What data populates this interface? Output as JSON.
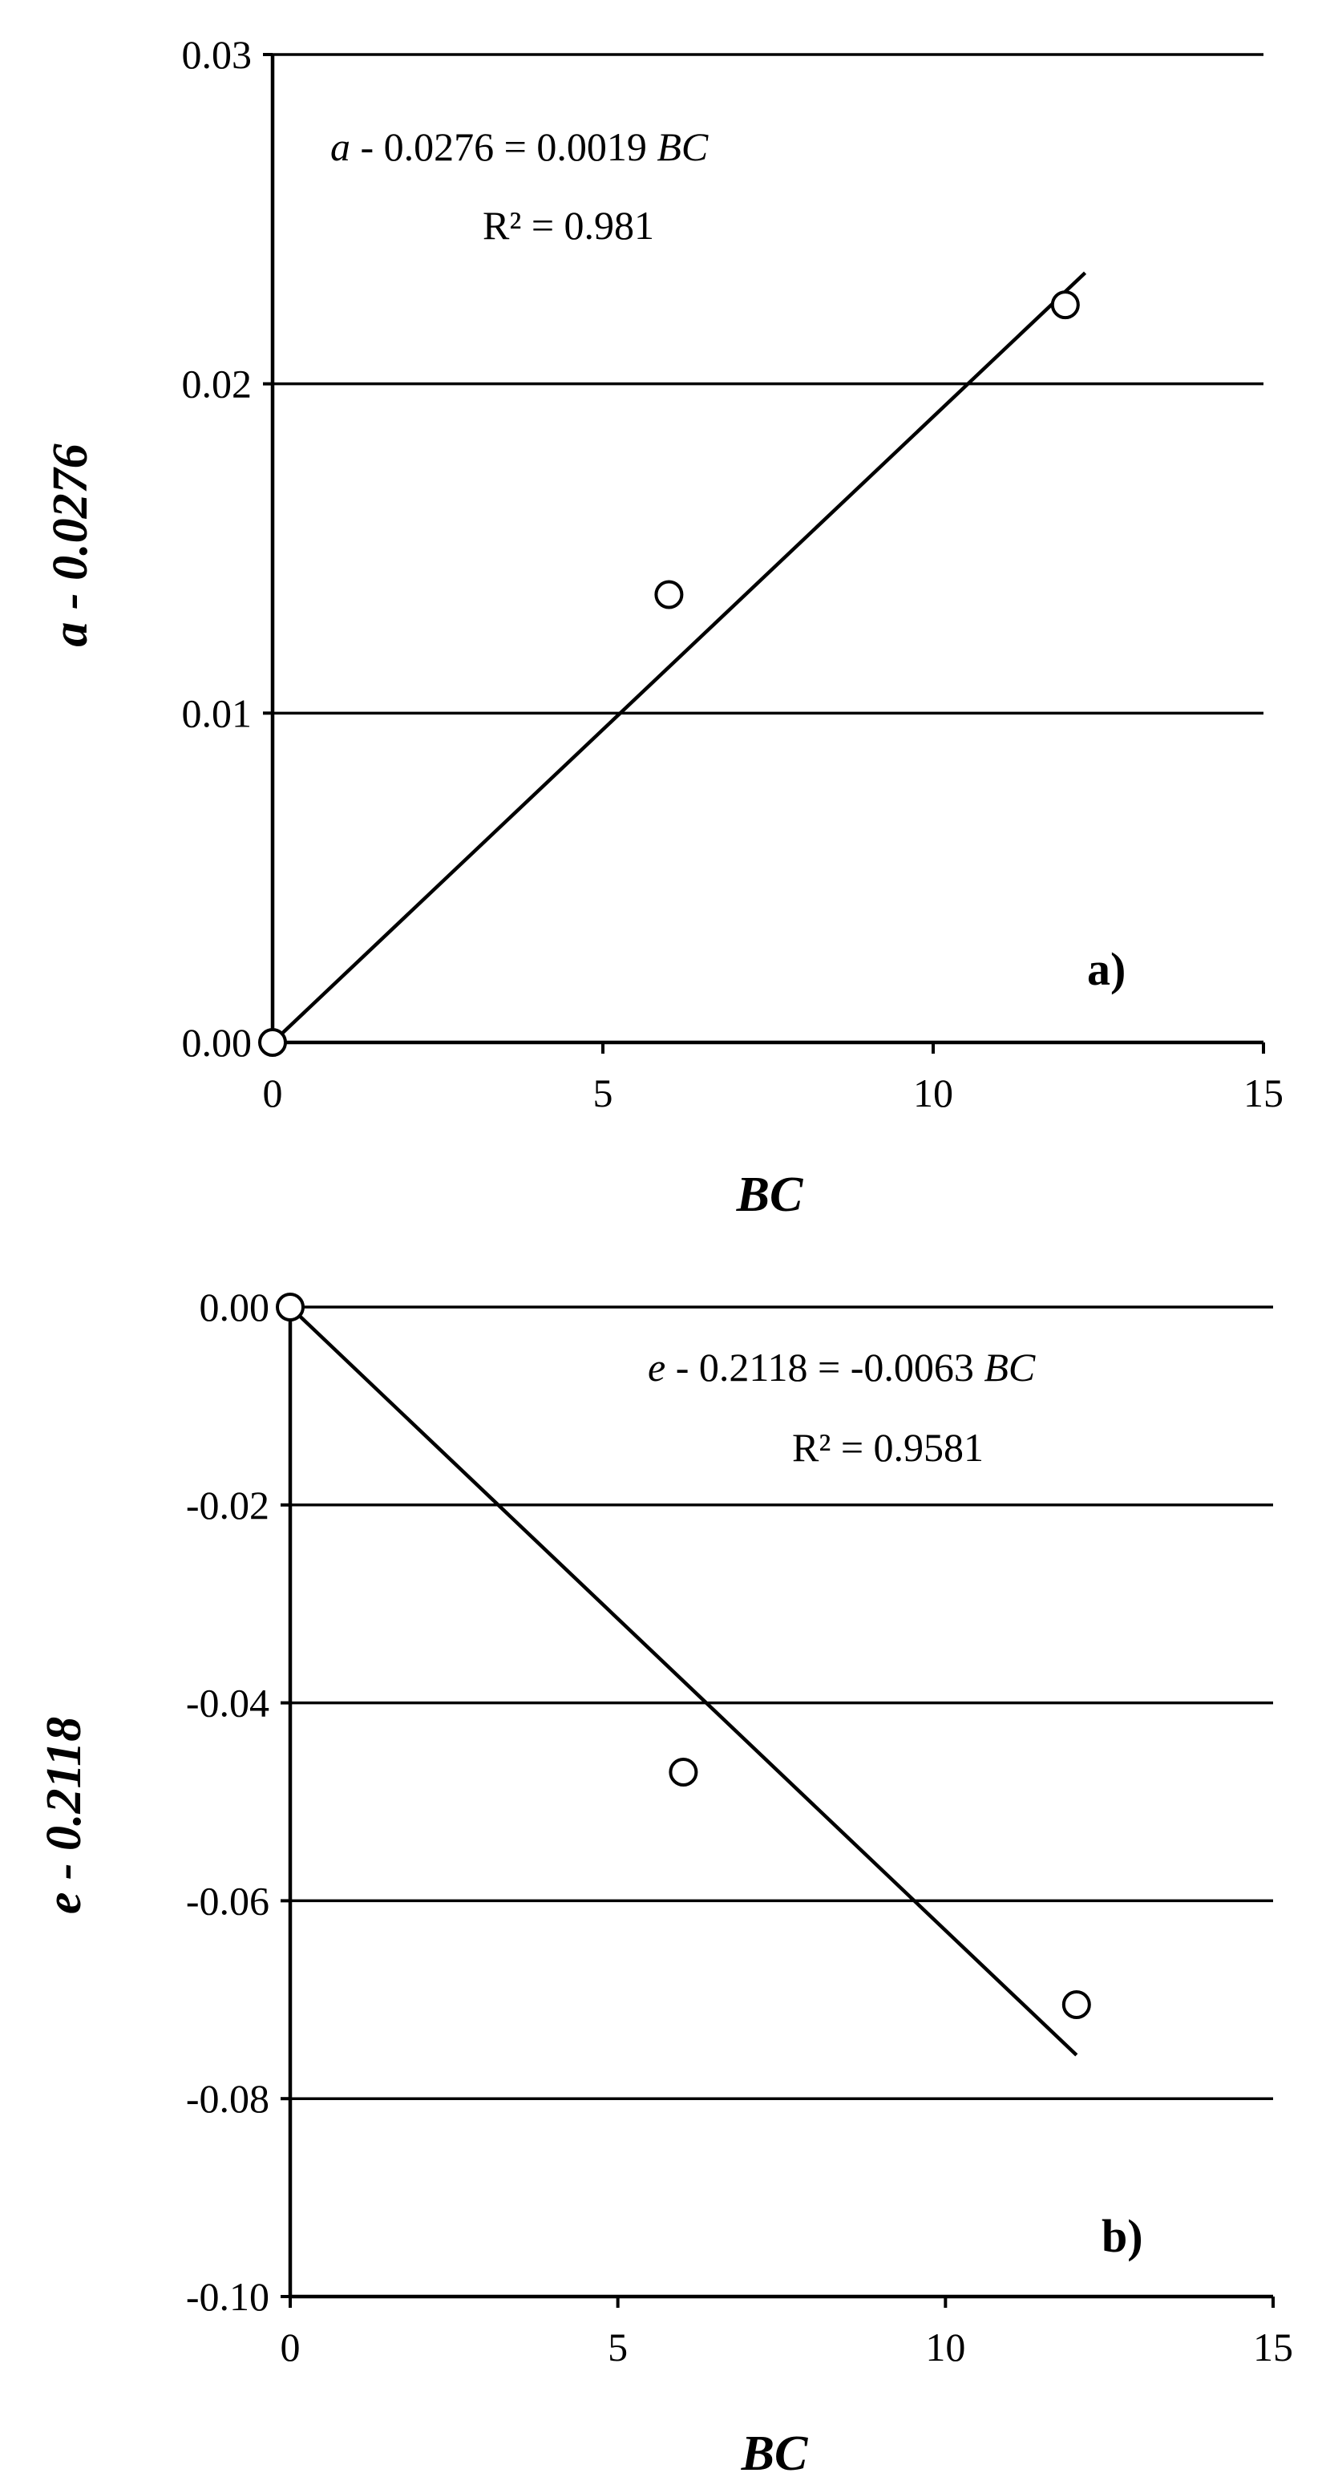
{
  "chart_data": [
    {
      "type": "scatter",
      "panel_label": "a)",
      "xlabel": "BC",
      "ylabel": "a - 0.0276",
      "xlim": [
        0,
        15
      ],
      "ylim": [
        0,
        0.03
      ],
      "x_ticks": [
        "0",
        "5",
        "10",
        "15"
      ],
      "y_ticks": [
        "0.00",
        "0.01",
        "0.02",
        "0.03"
      ],
      "grid": "horizontal",
      "series": [
        {
          "x": [
            0,
            6,
            12
          ],
          "y": [
            0.0,
            0.0136,
            0.0224
          ]
        }
      ],
      "trendline": {
        "slope": 0.0019,
        "x_range": [
          0,
          12.3
        ]
      },
      "equation": "a - 0.0276 = 0.0019 BC",
      "r_squared": "R² = 0.981"
    },
    {
      "type": "scatter",
      "panel_label": "b)",
      "xlabel": "BC",
      "ylabel": "e - 0.2118",
      "xlim": [
        0,
        15
      ],
      "ylim": [
        -0.1,
        0.0
      ],
      "x_ticks": [
        "0",
        "5",
        "10",
        "15"
      ],
      "y_ticks": [
        "0.00",
        "-0.02",
        "-0.04",
        "-0.06",
        "-0.08",
        "-0.10"
      ],
      "grid": "horizontal",
      "series": [
        {
          "x": [
            0,
            6,
            12
          ],
          "y": [
            0.0,
            -0.047,
            -0.0705
          ]
        }
      ],
      "trendline": {
        "slope": -0.0063,
        "x_range": [
          0,
          12
        ]
      },
      "equation": "e - 0.2118 = -0.0063 BC",
      "r_squared": "R² = 0.9581"
    }
  ]
}
